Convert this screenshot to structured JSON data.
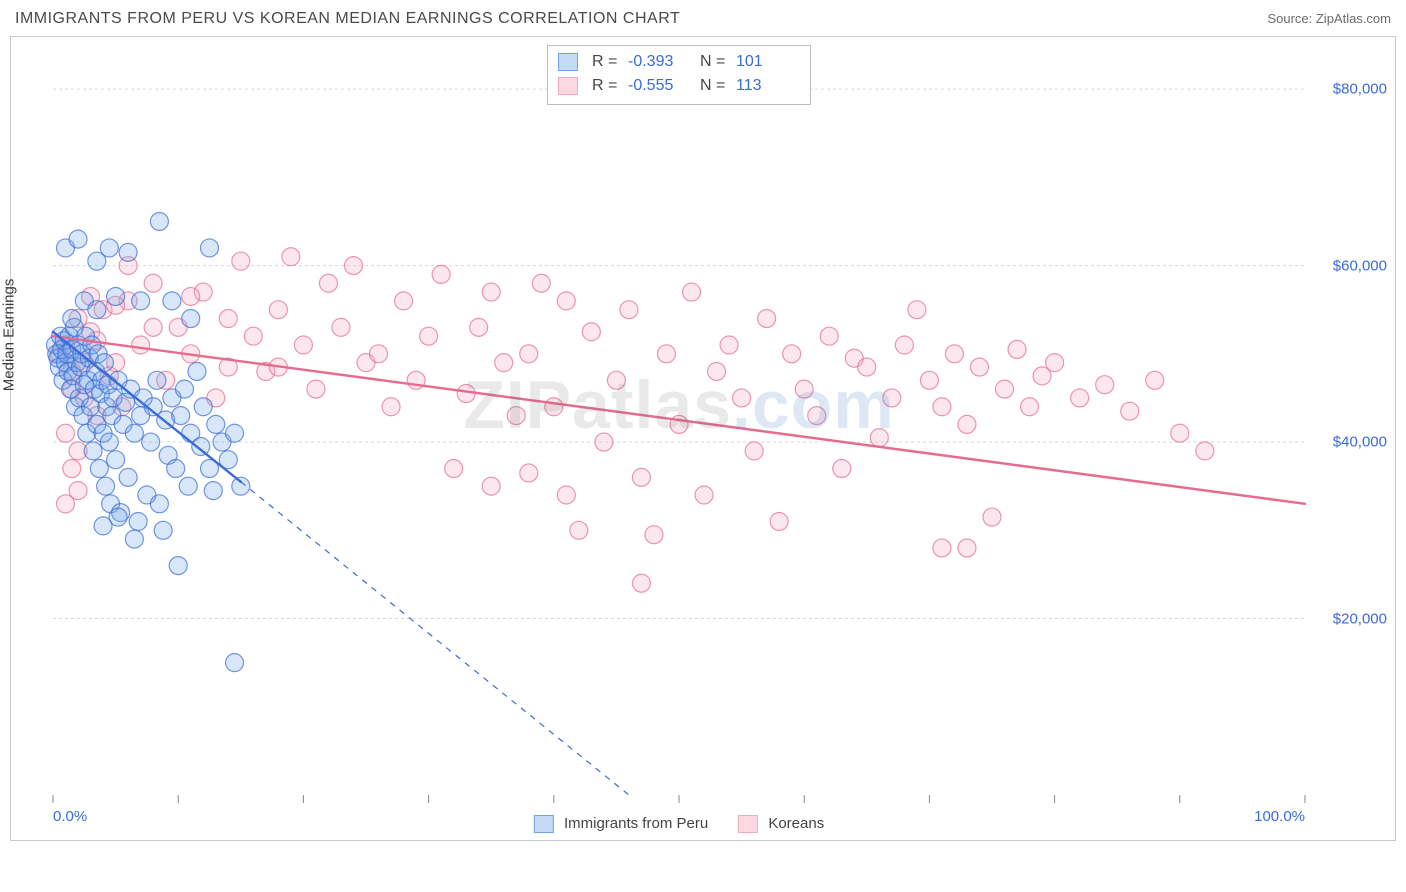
{
  "header": {
    "title": "IMMIGRANTS FROM PERU VS KOREAN MEDIAN EARNINGS CORRELATION CHART",
    "source_label": "Source: ",
    "source_name": "ZipAtlas.com"
  },
  "chart": {
    "type": "scatter",
    "ylabel": "Median Earnings",
    "background_color": "#ffffff",
    "border_color": "#c8c8c8",
    "grid_color": "#d7d7d7",
    "grid_dash": "3 3",
    "value_color": "#3b6bd6",
    "label_color": "#444444",
    "title_fontsize": 16,
    "label_fontsize": 15,
    "axis_fontsize": 15,
    "xlim": [
      0,
      100
    ],
    "ylim": [
      0,
      85000
    ],
    "y_gridlines": [
      20000,
      40000,
      60000,
      80000
    ],
    "y_tick_labels": [
      "$20,000",
      "$40,000",
      "$60,000",
      "$80,000"
    ],
    "x_tick_positions": [
      0,
      10,
      20,
      30,
      40,
      50,
      60,
      70,
      80,
      90,
      100
    ],
    "x_tick_labels": {
      "0": "0.0%",
      "100": "100.0%"
    },
    "marker_radius": 9,
    "trend_line_width": 2.4,
    "trend_dash_width": 1.2,
    "watermark": {
      "text_a": "ZIP",
      "text_b": "atlas",
      "tld": ".com",
      "fontsize": 68
    }
  },
  "series": {
    "peru": {
      "label": "Immigrants from Peru",
      "fill": "#6fa4e8",
      "stroke": "#3b6bd6",
      "swatch_fill": "#c5daf6",
      "swatch_border": "#6fa4e8",
      "R": "-0.393",
      "N": "101",
      "trend": {
        "x1": 0,
        "y1": 52500,
        "x2": 15,
        "y2": 35500,
        "ext_x2": 46,
        "ext_y2": 0
      },
      "points": [
        [
          0.2,
          51000
        ],
        [
          0.3,
          50000
        ],
        [
          0.4,
          49500
        ],
        [
          0.5,
          48500
        ],
        [
          0.6,
          52000
        ],
        [
          0.7,
          50500
        ],
        [
          0.8,
          47000
        ],
        [
          0.9,
          51500
        ],
        [
          1.0,
          49000
        ],
        [
          1.1,
          50000
        ],
        [
          1.2,
          48000
        ],
        [
          1.3,
          52000
        ],
        [
          1.4,
          46000
        ],
        [
          1.5,
          50500
        ],
        [
          1.6,
          47500
        ],
        [
          1.7,
          53000
        ],
        [
          1.8,
          44000
        ],
        [
          1.9,
          49000
        ],
        [
          2.0,
          51000
        ],
        [
          2.1,
          45000
        ],
        [
          2.2,
          48500
        ],
        [
          2.3,
          50000
        ],
        [
          2.4,
          43000
        ],
        [
          2.5,
          46500
        ],
        [
          2.6,
          52000
        ],
        [
          2.7,
          41000
        ],
        [
          2.8,
          47000
        ],
        [
          2.9,
          49500
        ],
        [
          3.0,
          44000
        ],
        [
          3.1,
          51000
        ],
        [
          3.2,
          39000
        ],
        [
          3.3,
          46000
        ],
        [
          3.4,
          48000
        ],
        [
          3.5,
          42000
        ],
        [
          3.6,
          50000
        ],
        [
          3.7,
          37000
        ],
        [
          3.8,
          45500
        ],
        [
          3.9,
          47000
        ],
        [
          4.0,
          41000
        ],
        [
          4.1,
          49000
        ],
        [
          4.2,
          35000
        ],
        [
          4.3,
          44000
        ],
        [
          4.4,
          46500
        ],
        [
          4.5,
          40000
        ],
        [
          4.6,
          33000
        ],
        [
          4.7,
          43000
        ],
        [
          4.8,
          45000
        ],
        [
          5.0,
          38000
        ],
        [
          5.2,
          47000
        ],
        [
          5.4,
          32000
        ],
        [
          5.6,
          42000
        ],
        [
          5.8,
          44500
        ],
        [
          6.0,
          36000
        ],
        [
          6.2,
          46000
        ],
        [
          6.5,
          41000
        ],
        [
          6.8,
          31000
        ],
        [
          7.0,
          43000
        ],
        [
          7.2,
          45000
        ],
        [
          7.5,
          34000
        ],
        [
          7.8,
          40000
        ],
        [
          8.0,
          44000
        ],
        [
          8.3,
          47000
        ],
        [
          8.5,
          33000
        ],
        [
          8.8,
          30000
        ],
        [
          9.0,
          42500
        ],
        [
          9.2,
          38500
        ],
        [
          9.5,
          45000
        ],
        [
          9.8,
          37000
        ],
        [
          10.0,
          26000
        ],
        [
          10.2,
          43000
        ],
        [
          10.5,
          46000
        ],
        [
          10.8,
          35000
        ],
        [
          11.0,
          41000
        ],
        [
          11.5,
          48000
        ],
        [
          11.8,
          39500
        ],
        [
          12.0,
          44000
        ],
        [
          12.5,
          37000
        ],
        [
          12.8,
          34500
        ],
        [
          13.0,
          42000
        ],
        [
          13.5,
          40000
        ],
        [
          14.0,
          38000
        ],
        [
          14.5,
          41000
        ],
        [
          15.0,
          35000
        ],
        [
          8.5,
          65000
        ],
        [
          1.0,
          62000
        ],
        [
          2.0,
          63000
        ],
        [
          3.5,
          60500
        ],
        [
          4.5,
          62000
        ],
        [
          6.0,
          61500
        ],
        [
          12.5,
          62000
        ],
        [
          1.5,
          54000
        ],
        [
          2.5,
          56000
        ],
        [
          3.5,
          55000
        ],
        [
          5.0,
          56500
        ],
        [
          4.0,
          30500
        ],
        [
          5.2,
          31500
        ],
        [
          6.5,
          29000
        ],
        [
          9.5,
          56000
        ],
        [
          11.0,
          54000
        ],
        [
          14.5,
          15000
        ],
        [
          7.0,
          56000
        ]
      ]
    },
    "korean": {
      "label": "Koreans",
      "fill": "#f2a8bf",
      "stroke": "#e56b8f",
      "swatch_fill": "#fcd8e2",
      "swatch_border": "#f2a8bf",
      "R": "-0.555",
      "N": "113",
      "trend": {
        "x1": 0,
        "y1": 52000,
        "x2": 100,
        "y2": 33000
      },
      "points": [
        [
          0.5,
          50000
        ],
        [
          1,
          51000
        ],
        [
          1.5,
          48000
        ],
        [
          2,
          54000
        ],
        [
          2.5,
          45000
        ],
        [
          3,
          52500
        ],
        [
          3.5,
          43000
        ],
        [
          1,
          41000
        ],
        [
          2,
          39000
        ],
        [
          1.5,
          37000
        ],
        [
          4,
          55000
        ],
        [
          5,
          49000
        ],
        [
          6,
          56000
        ],
        [
          7,
          51000
        ],
        [
          8,
          58000
        ],
        [
          9,
          47000
        ],
        [
          10,
          53000
        ],
        [
          11,
          50000
        ],
        [
          12,
          57000
        ],
        [
          13,
          45000
        ],
        [
          14,
          54000
        ],
        [
          15,
          60500
        ],
        [
          16,
          52000
        ],
        [
          17,
          48000
        ],
        [
          18,
          55000
        ],
        [
          19,
          61000
        ],
        [
          20,
          51000
        ],
        [
          21,
          46000
        ],
        [
          22,
          58000
        ],
        [
          23,
          53000
        ],
        [
          24,
          60000
        ],
        [
          25,
          49000
        ],
        [
          26,
          50000
        ],
        [
          27,
          44000
        ],
        [
          28,
          56000
        ],
        [
          29,
          47000
        ],
        [
          30,
          52000
        ],
        [
          31,
          59000
        ],
        [
          32,
          37000
        ],
        [
          33,
          45500
        ],
        [
          34,
          53000
        ],
        [
          35,
          57000
        ],
        [
          36,
          49000
        ],
        [
          37,
          43000
        ],
        [
          38,
          50000
        ],
        [
          39,
          58000
        ],
        [
          40,
          44000
        ],
        [
          41,
          56000
        ],
        [
          42,
          30000
        ],
        [
          43,
          52500
        ],
        [
          44,
          40000
        ],
        [
          45,
          47000
        ],
        [
          46,
          55000
        ],
        [
          47,
          36000
        ],
        [
          48,
          29500
        ],
        [
          49,
          50000
        ],
        [
          50,
          42000
        ],
        [
          51,
          57000
        ],
        [
          52,
          34000
        ],
        [
          53,
          48000
        ],
        [
          54,
          51000
        ],
        [
          55,
          45000
        ],
        [
          56,
          39000
        ],
        [
          57,
          54000
        ],
        [
          58,
          31000
        ],
        [
          59,
          50000
        ],
        [
          60,
          46000
        ],
        [
          61,
          43000
        ],
        [
          62,
          52000
        ],
        [
          63,
          37000
        ],
        [
          47,
          24000
        ],
        [
          64,
          49500
        ],
        [
          65,
          48500
        ],
        [
          66,
          40500
        ],
        [
          67,
          45000
        ],
        [
          68,
          51000
        ],
        [
          69,
          55000
        ],
        [
          70,
          47000
        ],
        [
          71,
          44000
        ],
        [
          72,
          50000
        ],
        [
          73,
          42000
        ],
        [
          74,
          48500
        ],
        [
          75,
          31500
        ],
        [
          76,
          46000
        ],
        [
          77,
          50500
        ],
        [
          78,
          44000
        ],
        [
          79,
          47500
        ],
        [
          80,
          49000
        ],
        [
          82,
          45000
        ],
        [
          84,
          46500
        ],
        [
          86,
          43500
        ],
        [
          88,
          47000
        ],
        [
          90,
          41000
        ],
        [
          3,
          56500
        ],
        [
          5,
          55500
        ],
        [
          8,
          53000
        ],
        [
          11,
          56500
        ],
        [
          14,
          48500
        ],
        [
          6,
          60000
        ],
        [
          35,
          35000
        ],
        [
          38,
          36500
        ],
        [
          41,
          34000
        ],
        [
          71,
          28000
        ],
        [
          73,
          28000
        ],
        [
          92,
          39000
        ],
        [
          1,
          33000
        ],
        [
          2,
          34500
        ],
        [
          1.5,
          46000
        ],
        [
          2.5,
          49000
        ],
        [
          3.5,
          51500
        ],
        [
          4.5,
          47500
        ],
        [
          5.5,
          44000
        ],
        [
          18,
          48500
        ]
      ]
    }
  },
  "legend_top": {
    "R_label": "R =",
    "N_label": "N ="
  }
}
